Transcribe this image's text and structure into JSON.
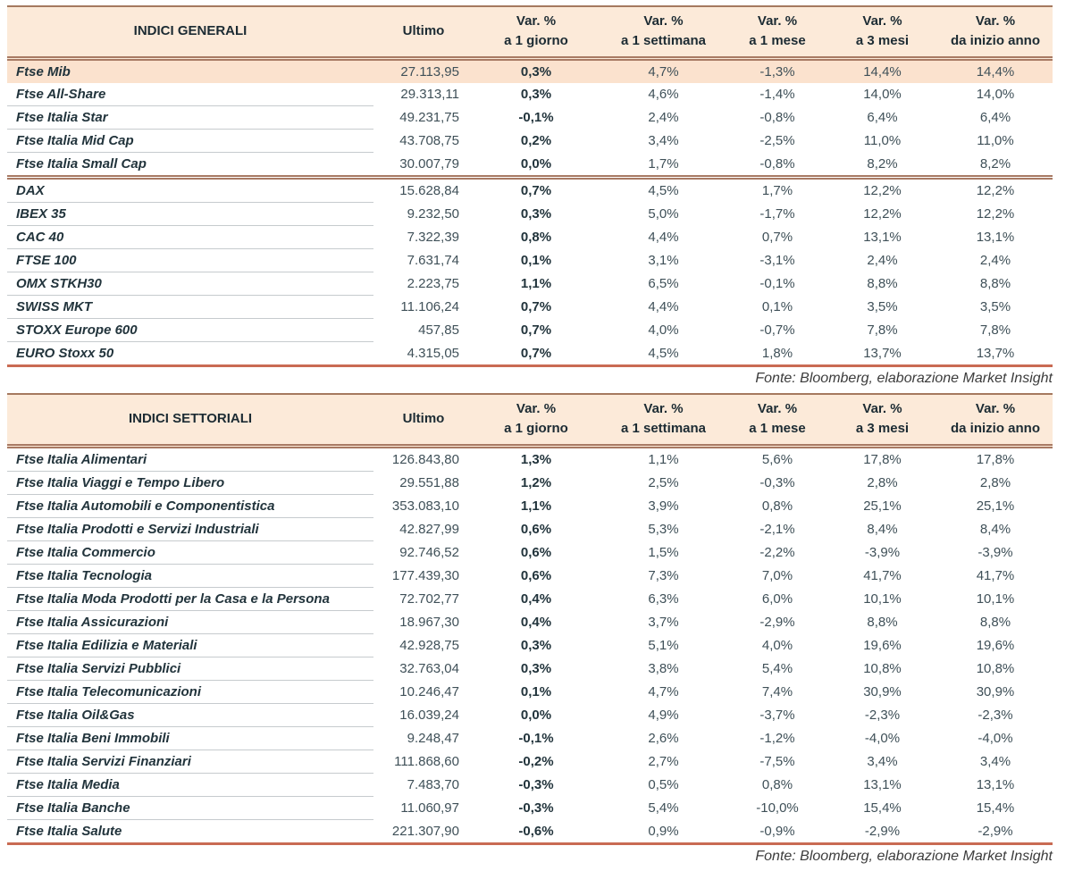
{
  "header": {
    "ultimo": "Ultimo",
    "var_label": "Var. %",
    "periods": [
      "a 1 giorno",
      "a 1 settimana",
      "a 1 mese",
      "a 3 mesi",
      "da inizio anno"
    ]
  },
  "colors": {
    "accent_border": "#c96b53",
    "double_line": "#a87a64",
    "header_bg": "#fcead9",
    "highlight_row_bg": "#fbe2ce",
    "text_dark": "#22343c"
  },
  "tables": [
    {
      "title": "INDICI GENERALI",
      "source_note": "Fonte: Bloomberg, elaborazione Market Insight",
      "groups": [
        {
          "rows": [
            {
              "name": "Ftse Mib",
              "ultimo": "27.113,95",
              "vars": [
                "0,3%",
                "4,7%",
                "-1,3%",
                "14,4%",
                "14,4%"
              ],
              "highlight": true
            },
            {
              "name": "Ftse All-Share",
              "ultimo": "29.313,11",
              "vars": [
                "0,3%",
                "4,6%",
                "-1,4%",
                "14,0%",
                "14,0%"
              ]
            },
            {
              "name": "Ftse Italia Star",
              "ultimo": "49.231,75",
              "vars": [
                "-0,1%",
                "2,4%",
                "-0,8%",
                "6,4%",
                "6,4%"
              ]
            },
            {
              "name": "Ftse Italia Mid Cap",
              "ultimo": "43.708,75",
              "vars": [
                "0,2%",
                "3,4%",
                "-2,5%",
                "11,0%",
                "11,0%"
              ]
            },
            {
              "name": "Ftse Italia Small Cap",
              "ultimo": "30.007,79",
              "vars": [
                "0,0%",
                "1,7%",
                "-0,8%",
                "8,2%",
                "8,2%"
              ]
            }
          ]
        },
        {
          "rows": [
            {
              "name": "DAX",
              "ultimo": "15.628,84",
              "vars": [
                "0,7%",
                "4,5%",
                "1,7%",
                "12,2%",
                "12,2%"
              ]
            },
            {
              "name": "IBEX 35",
              "ultimo": "9.232,50",
              "vars": [
                "0,3%",
                "5,0%",
                "-1,7%",
                "12,2%",
                "12,2%"
              ]
            },
            {
              "name": "CAC 40",
              "ultimo": "7.322,39",
              "vars": [
                "0,8%",
                "4,4%",
                "0,7%",
                "13,1%",
                "13,1%"
              ]
            },
            {
              "name": "FTSE 100",
              "ultimo": "7.631,74",
              "vars": [
                "0,1%",
                "3,1%",
                "-3,1%",
                "2,4%",
                "2,4%"
              ]
            },
            {
              "name": "OMX STKH30",
              "ultimo": "2.223,75",
              "vars": [
                "1,1%",
                "6,5%",
                "-0,1%",
                "8,8%",
                "8,8%"
              ]
            },
            {
              "name": "SWISS MKT",
              "ultimo": "11.106,24",
              "vars": [
                "0,7%",
                "4,4%",
                "0,1%",
                "3,5%",
                "3,5%"
              ]
            },
            {
              "name": "STOXX Europe 600",
              "ultimo": "457,85",
              "vars": [
                "0,7%",
                "4,0%",
                "-0,7%",
                "7,8%",
                "7,8%"
              ]
            },
            {
              "name": "EURO Stoxx 50",
              "ultimo": "4.315,05",
              "vars": [
                "0,7%",
                "4,5%",
                "1,8%",
                "13,7%",
                "13,7%"
              ]
            }
          ]
        }
      ]
    },
    {
      "title": "INDICI SETTORIALI",
      "source_note": "Fonte: Bloomberg, elaborazione Market Insight",
      "groups": [
        {
          "rows": [
            {
              "name": "Ftse Italia Alimentari",
              "ultimo": "126.843,80",
              "vars": [
                "1,3%",
                "1,1%",
                "5,6%",
                "17,8%",
                "17,8%"
              ]
            },
            {
              "name": "Ftse Italia Viaggi e Tempo Libero",
              "ultimo": "29.551,88",
              "vars": [
                "1,2%",
                "2,5%",
                "-0,3%",
                "2,8%",
                "2,8%"
              ]
            },
            {
              "name": "Ftse Italia Automobili e Componentistica",
              "ultimo": "353.083,10",
              "vars": [
                "1,1%",
                "3,9%",
                "0,8%",
                "25,1%",
                "25,1%"
              ]
            },
            {
              "name": "Ftse Italia Prodotti e Servizi Industriali",
              "ultimo": "42.827,99",
              "vars": [
                "0,6%",
                "5,3%",
                "-2,1%",
                "8,4%",
                "8,4%"
              ]
            },
            {
              "name": "Ftse Italia Commercio",
              "ultimo": "92.746,52",
              "vars": [
                "0,6%",
                "1,5%",
                "-2,2%",
                "-3,9%",
                "-3,9%"
              ]
            },
            {
              "name": "Ftse Italia Tecnologia",
              "ultimo": "177.439,30",
              "vars": [
                "0,6%",
                "7,3%",
                "7,0%",
                "41,7%",
                "41,7%"
              ]
            },
            {
              "name": "Ftse Italia Moda Prodotti per la Casa e la Persona",
              "ultimo": "72.702,77",
              "vars": [
                "0,4%",
                "6,3%",
                "6,0%",
                "10,1%",
                "10,1%"
              ]
            },
            {
              "name": "Ftse Italia Assicurazioni",
              "ultimo": "18.967,30",
              "vars": [
                "0,4%",
                "3,7%",
                "-2,9%",
                "8,8%",
                "8,8%"
              ]
            },
            {
              "name": "Ftse Italia Edilizia e Materiali",
              "ultimo": "42.928,75",
              "vars": [
                "0,3%",
                "5,1%",
                "4,0%",
                "19,6%",
                "19,6%"
              ]
            },
            {
              "name": "Ftse Italia Servizi Pubblici",
              "ultimo": "32.763,04",
              "vars": [
                "0,3%",
                "3,8%",
                "5,4%",
                "10,8%",
                "10,8%"
              ]
            },
            {
              "name": "Ftse Italia Telecomunicazioni",
              "ultimo": "10.246,47",
              "vars": [
                "0,1%",
                "4,7%",
                "7,4%",
                "30,9%",
                "30,9%"
              ]
            },
            {
              "name": "Ftse Italia Oil&Gas",
              "ultimo": "16.039,24",
              "vars": [
                "0,0%",
                "4,9%",
                "-3,7%",
                "-2,3%",
                "-2,3%"
              ]
            },
            {
              "name": "Ftse Italia Beni Immobili",
              "ultimo": "9.248,47",
              "vars": [
                "-0,1%",
                "2,6%",
                "-1,2%",
                "-4,0%",
                "-4,0%"
              ]
            },
            {
              "name": "Ftse Italia Servizi Finanziari",
              "ultimo": "111.868,60",
              "vars": [
                "-0,2%",
                "2,7%",
                "-7,5%",
                "3,4%",
                "3,4%"
              ]
            },
            {
              "name": "Ftse Italia Media",
              "ultimo": "7.483,70",
              "vars": [
                "-0,3%",
                "0,5%",
                "0,8%",
                "13,1%",
                "13,1%"
              ]
            },
            {
              "name": "Ftse Italia Banche",
              "ultimo": "11.060,97",
              "vars": [
                "-0,3%",
                "5,4%",
                "-10,0%",
                "15,4%",
                "15,4%"
              ]
            },
            {
              "name": "Ftse Italia Salute",
              "ultimo": "221.307,90",
              "vars": [
                "-0,6%",
                "0,9%",
                "-0,9%",
                "-2,9%",
                "-2,9%"
              ]
            }
          ]
        }
      ]
    }
  ]
}
